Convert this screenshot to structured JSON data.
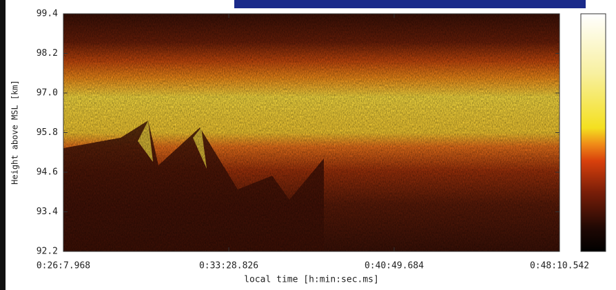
{
  "chart_data": {
    "type": "heatmap",
    "x_label": "local time [h:min:sec.ms]",
    "y_label": "Height above MSL [km]",
    "xlim": [
      1567.968,
      2890.542
    ],
    "xticks": [
      {
        "value": 1567.968,
        "label": "0:26:7.968"
      },
      {
        "value": 2008.826,
        "label": "0:33:28.826"
      },
      {
        "value": 2449.684,
        "label": "0:40:49.684"
      },
      {
        "value": 2890.542,
        "label": "0:48:10.542"
      }
    ],
    "ylim": [
      92.2,
      99.4
    ],
    "yticks": [
      92.2,
      93.4,
      94.6,
      95.8,
      {
        "value": 97,
        "label": "97.0"
      },
      98.2,
      99.4
    ]
  }
}
